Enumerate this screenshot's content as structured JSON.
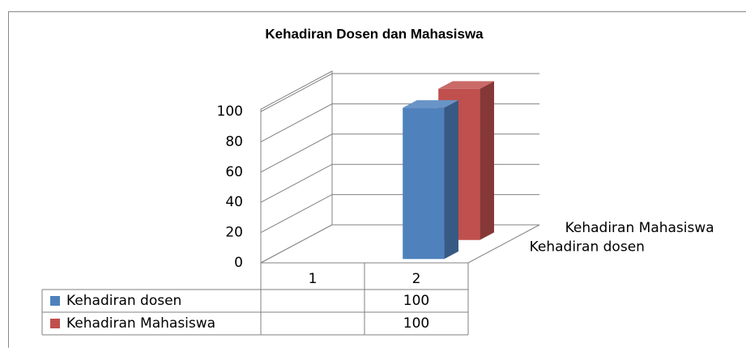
{
  "chart_data": {
    "type": "bar",
    "title": "Kehadiran Dosen dan Mahasiswa",
    "categories": [
      "1",
      "2"
    ],
    "series": [
      {
        "name": "Kehadiran dosen",
        "color": "#4f81bd",
        "values": [
          null,
          100
        ]
      },
      {
        "name": "Kehadiran Mahasiswa",
        "color": "#c0504d",
        "values": [
          null,
          100
        ]
      }
    ],
    "ylim": [
      0,
      100
    ],
    "yticks": [
      0,
      20,
      40,
      60,
      80,
      100
    ],
    "grid": true
  }
}
